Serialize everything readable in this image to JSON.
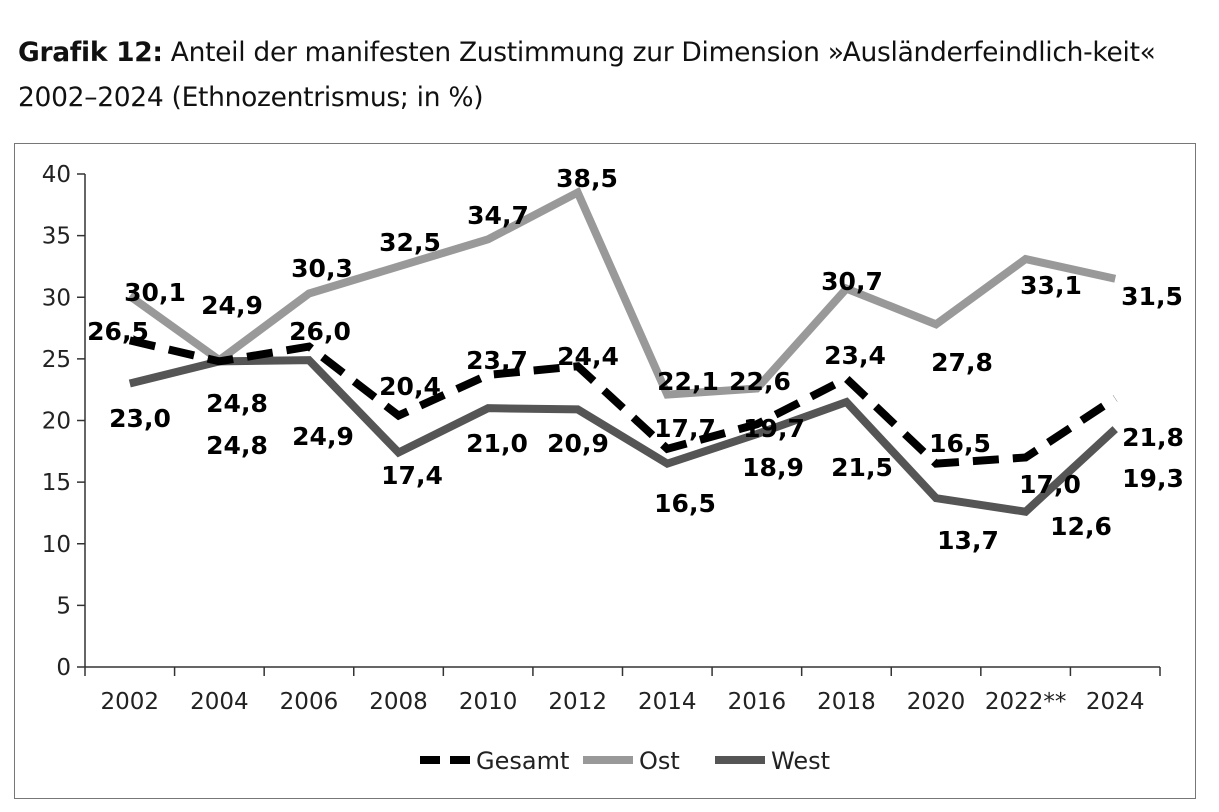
{
  "title": {
    "prefix": "Grafik 12:",
    "text": " Anteil der manifesten Zustimmung zur Dimension »Ausländerfeindlich-keit« 2002–2024 (Ethnozentrismus; in %)"
  },
  "chart_data": {
    "type": "line",
    "categories": [
      "2002",
      "2004",
      "2006",
      "2008",
      "2010",
      "2012",
      "2014",
      "2016",
      "2018",
      "2020",
      "2022**",
      "2024"
    ],
    "ylim": [
      0,
      40
    ],
    "yticks": [
      0,
      5,
      10,
      15,
      20,
      25,
      30,
      35,
      40
    ],
    "grid": false,
    "legend_placement": "bottom",
    "series": [
      {
        "name": "Ost",
        "color": "#999999",
        "style": "solid",
        "values": [
          30.1,
          24.9,
          30.3,
          32.5,
          34.7,
          38.5,
          22.1,
          22.6,
          30.7,
          27.8,
          33.1,
          31.5
        ]
      },
      {
        "name": "West",
        "color": "#555555",
        "style": "solid",
        "values": [
          23.0,
          24.8,
          24.9,
          17.4,
          21.0,
          20.9,
          16.5,
          18.9,
          21.5,
          13.7,
          12.6,
          19.3
        ]
      },
      {
        "name": "Gesamt",
        "color": "#000000",
        "style": "dashed",
        "values": [
          26.5,
          24.8,
          26.0,
          20.4,
          23.7,
          24.4,
          17.7,
          19.7,
          23.4,
          16.5,
          17.0,
          21.8
        ]
      }
    ],
    "legend_order": [
      "Gesamt",
      "Ost",
      "West"
    ]
  }
}
